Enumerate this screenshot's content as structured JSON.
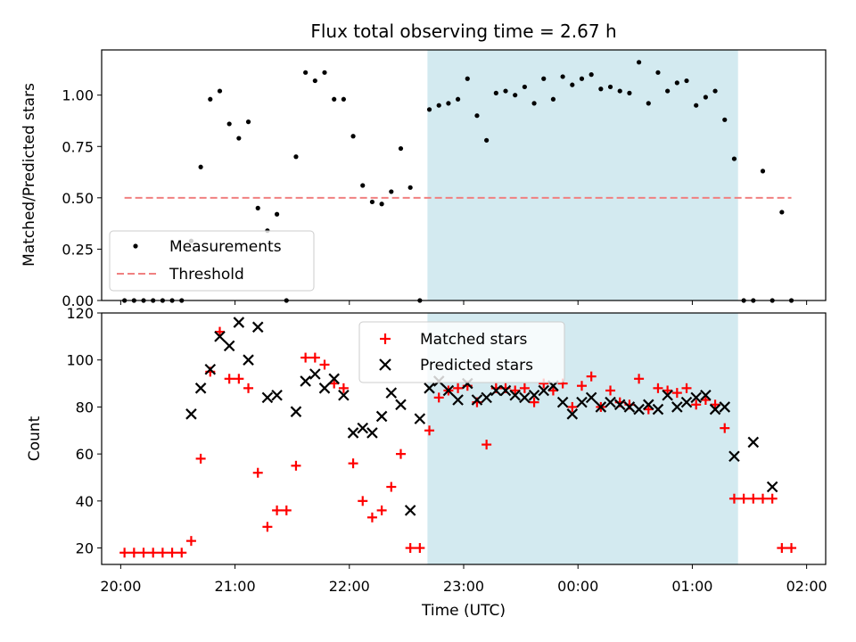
{
  "chart_data": [
    {
      "type": "scatter",
      "title": "Flux total observing time = 2.67 h",
      "xlabel": "",
      "ylabel": "Matched/Predicted stars",
      "ylim": [
        0,
        1.22
      ],
      "xlim": [
        "19:50",
        "02:10"
      ],
      "y_ticks": [
        "0.00",
        "0.25",
        "0.50",
        "0.75",
        "1.00"
      ],
      "highlight_span": [
        "22:41",
        "01:24"
      ],
      "highlight_color": "#d3eaf0",
      "threshold": {
        "name": "Threshold",
        "value": 0.5,
        "x_range": [
          "20:02",
          "01:52"
        ],
        "color": "#f08080"
      },
      "legend": {
        "placement": "lower-left",
        "entries": [
          "Measurements",
          "Threshold"
        ]
      },
      "series": [
        {
          "name": "Measurements",
          "color": "#000000",
          "x": [
            "20:02",
            "20:07",
            "20:12",
            "20:17",
            "20:22",
            "20:27",
            "20:32",
            "20:37",
            "20:42",
            "20:47",
            "20:52",
            "20:57",
            "21:02",
            "21:07",
            "21:12",
            "21:17",
            "21:22",
            "21:27",
            "21:32",
            "21:37",
            "21:42",
            "21:47",
            "21:52",
            "21:57",
            "22:02",
            "22:07",
            "22:12",
            "22:17",
            "22:22",
            "22:27",
            "22:32",
            "22:37",
            "22:42",
            "22:47",
            "22:52",
            "22:57",
            "23:02",
            "23:07",
            "23:12",
            "23:17",
            "23:22",
            "23:27",
            "23:32",
            "23:37",
            "23:42",
            "23:47",
            "23:52",
            "23:57",
            "00:02",
            "00:07",
            "00:12",
            "00:17",
            "00:22",
            "00:27",
            "00:32",
            "00:37",
            "00:42",
            "00:47",
            "00:52",
            "00:57",
            "01:02",
            "01:07",
            "01:12",
            "01:17",
            "01:22",
            "01:27",
            "01:32",
            "01:37",
            "01:42",
            "01:47",
            "01:52"
          ],
          "y": [
            0.0,
            0.0,
            0.0,
            0.0,
            0.0,
            0.0,
            0.0,
            0.29,
            0.65,
            0.98,
            1.02,
            0.86,
            0.79,
            0.87,
            0.45,
            0.34,
            0.42,
            0.0,
            0.7,
            1.11,
            1.07,
            1.11,
            0.98,
            0.98,
            0.8,
            0.56,
            0.48,
            0.47,
            0.53,
            0.74,
            0.55,
            0.0,
            0.93,
            0.95,
            0.96,
            0.98,
            1.08,
            0.9,
            0.78,
            1.01,
            1.02,
            1.0,
            1.04,
            0.96,
            1.08,
            0.98,
            1.09,
            1.05,
            1.08,
            1.1,
            1.03,
            1.04,
            1.02,
            1.01,
            1.16,
            0.96,
            1.11,
            1.02,
            1.06,
            1.07,
            0.95,
            0.99,
            1.02,
            0.88,
            0.69,
            0.0,
            0.0,
            0.63,
            0.0,
            0.43,
            0.0
          ]
        }
      ]
    },
    {
      "type": "scatter",
      "title": "",
      "xlabel": "Time (UTC)",
      "ylabel": "Count",
      "ylim": [
        13,
        120
      ],
      "xlim": [
        "19:50",
        "02:10"
      ],
      "x_ticks": [
        "20:00",
        "21:00",
        "22:00",
        "23:00",
        "00:00",
        "01:00",
        "02:00"
      ],
      "y_ticks": [
        "20",
        "40",
        "60",
        "80",
        "100",
        "120"
      ],
      "highlight_span": [
        "22:41",
        "01:24"
      ],
      "highlight_color": "#d3eaf0",
      "legend": {
        "placement": "top-center",
        "entries": [
          "Matched stars",
          "Predicted stars"
        ]
      },
      "series": [
        {
          "name": "Matched stars",
          "marker": "plus",
          "color": "#ff0000",
          "x": [
            "20:02",
            "20:07",
            "20:12",
            "20:17",
            "20:22",
            "20:27",
            "20:32",
            "20:37",
            "20:42",
            "20:47",
            "20:52",
            "20:57",
            "21:02",
            "21:07",
            "21:12",
            "21:17",
            "21:22",
            "21:27",
            "21:32",
            "21:37",
            "21:42",
            "21:47",
            "21:52",
            "21:57",
            "22:02",
            "22:07",
            "22:12",
            "22:17",
            "22:22",
            "22:27",
            "22:32",
            "22:37",
            "22:42",
            "22:47",
            "22:52",
            "22:57",
            "23:02",
            "23:07",
            "23:12",
            "23:17",
            "23:22",
            "23:27",
            "23:32",
            "23:37",
            "23:42",
            "23:47",
            "23:52",
            "23:57",
            "00:02",
            "00:07",
            "00:12",
            "00:17",
            "00:22",
            "00:27",
            "00:32",
            "00:37",
            "00:42",
            "00:47",
            "00:52",
            "00:57",
            "01:02",
            "01:07",
            "01:12",
            "01:17",
            "01:22",
            "01:27",
            "01:32",
            "01:37",
            "01:42",
            "01:47",
            "01:52"
          ],
          "y": [
            18,
            18,
            18,
            18,
            18,
            18,
            18,
            23,
            58,
            95,
            112,
            92,
            92,
            88,
            52,
            29,
            36,
            36,
            55,
            101,
            101,
            98,
            90,
            88,
            56,
            40,
            33,
            36,
            46,
            60,
            20,
            20,
            70,
            84,
            87,
            88,
            89,
            82,
            64,
            88,
            88,
            87,
            88,
            82,
            90,
            87,
            90,
            80,
            89,
            93,
            80,
            87,
            82,
            81,
            92,
            79,
            88,
            87,
            86,
            88,
            81,
            83,
            81,
            71,
            41,
            41,
            41,
            41,
            41,
            20,
            20
          ]
        },
        {
          "name": "Predicted stars",
          "marker": "x",
          "color": "#000000",
          "x": [
            "20:37",
            "20:42",
            "20:47",
            "20:52",
            "20:57",
            "21:02",
            "21:07",
            "21:12",
            "21:17",
            "21:22",
            "21:32",
            "21:37",
            "21:42",
            "21:47",
            "21:52",
            "21:57",
            "22:02",
            "22:07",
            "22:12",
            "22:17",
            "22:22",
            "22:27",
            "22:32",
            "22:37",
            "22:42",
            "22:47",
            "22:52",
            "22:57",
            "23:02",
            "23:07",
            "23:12",
            "23:17",
            "23:22",
            "23:27",
            "23:32",
            "23:37",
            "23:42",
            "23:47",
            "23:52",
            "23:57",
            "00:02",
            "00:07",
            "00:12",
            "00:17",
            "00:22",
            "00:27",
            "00:32",
            "00:37",
            "00:42",
            "00:47",
            "00:52",
            "00:57",
            "01:02",
            "01:07",
            "01:12",
            "01:17",
            "01:22",
            "01:32",
            "01:42"
          ],
          "y": [
            77,
            88,
            96,
            110,
            106,
            116,
            100,
            114,
            84,
            85,
            78,
            91,
            94,
            88,
            92,
            85,
            69,
            71,
            69,
            76,
            86,
            81,
            36,
            75,
            88,
            91,
            87,
            83,
            90,
            83,
            84,
            87,
            87,
            85,
            84,
            85,
            87,
            89,
            82,
            77,
            82,
            84,
            80,
            82,
            81,
            80,
            79,
            81,
            79,
            85,
            80,
            82,
            84,
            85,
            79,
            80,
            59,
            65,
            46
          ]
        }
      ]
    }
  ]
}
